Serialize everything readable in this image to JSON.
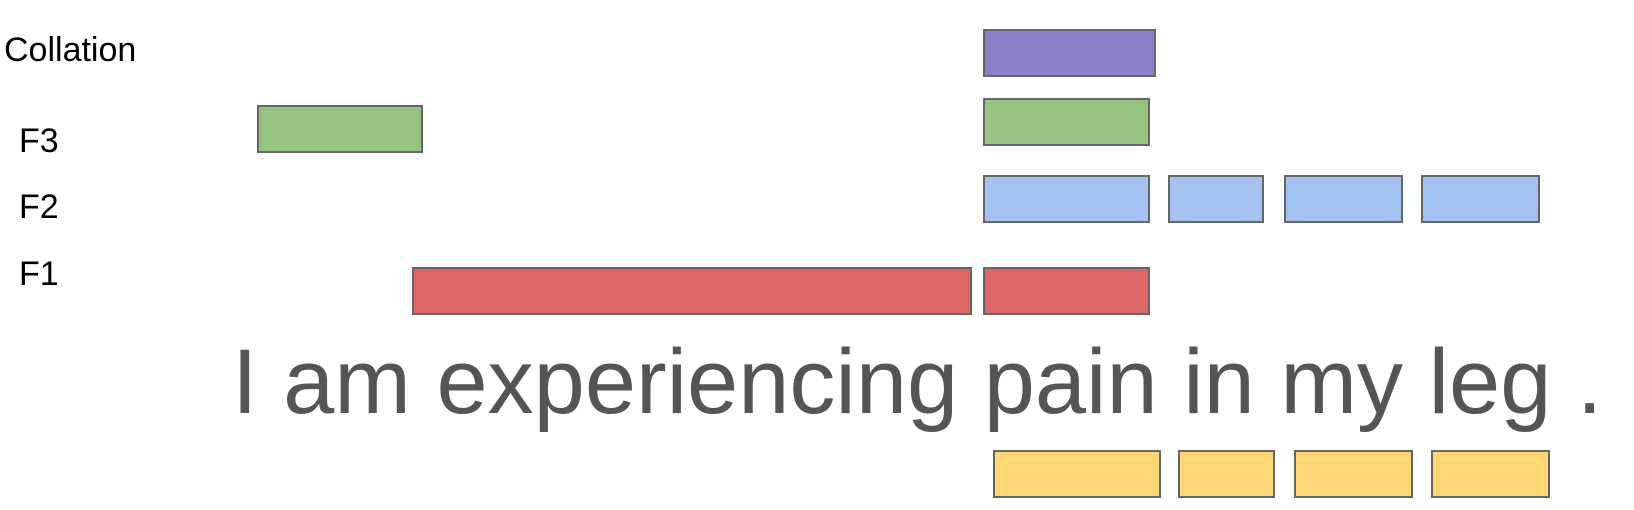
{
  "labels": {
    "collation": "Collation",
    "f3": "F3",
    "f2": "F2",
    "f1": "F1"
  },
  "sentence": "I am experiencing pain in my leg .",
  "colors": {
    "collation": "#8d7fc5",
    "f3": "#94c47f",
    "f2": "#a4c2f2",
    "f1": "#df6667",
    "output": "#fdd774",
    "border": "#666666"
  }
}
